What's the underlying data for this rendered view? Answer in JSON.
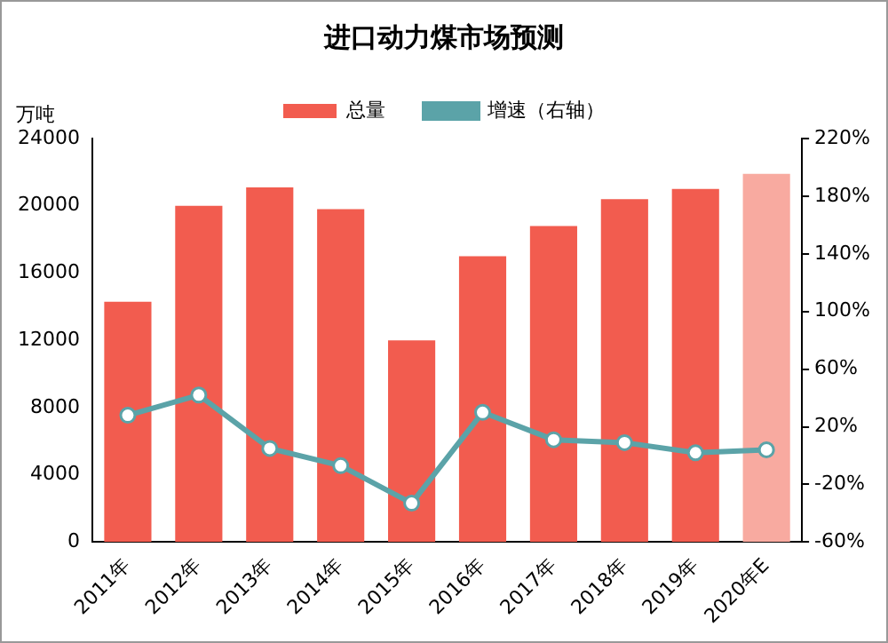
{
  "chart_data": {
    "type": "bar",
    "title": "进口动力煤市场预测",
    "ylabel": "万吨",
    "categories": [
      "2011年",
      "2012年",
      "2013年",
      "2014年",
      "2015年",
      "2016年",
      "2017年",
      "2018年",
      "2019年",
      "2020年E"
    ],
    "series": [
      {
        "name": "总量",
        "color": "#f25c4f",
        "colors": [
          "#f25c4f",
          "#f25c4f",
          "#f25c4f",
          "#f25c4f",
          "#f25c4f",
          "#f25c4f",
          "#f25c4f",
          "#f25c4f",
          "#f25c4f",
          "#f8aaa0"
        ],
        "values": [
          14300,
          20000,
          21100,
          19800,
          12000,
          17000,
          18800,
          20400,
          21000,
          21900
        ]
      },
      {
        "name": "增速（右轴）",
        "type": "line",
        "axis": "y2",
        "color": "#5ba3a8",
        "values": [
          28,
          42,
          5,
          -7,
          -33,
          30,
          11,
          9,
          2,
          4
        ]
      }
    ],
    "ylim": [
      0,
      24000
    ],
    "yticks": [
      0,
      4000,
      8000,
      12000,
      16000,
      20000,
      24000
    ],
    "y2lim": [
      -60,
      220
    ],
    "y2ticks": [
      {
        "value": -60,
        "label": "-60%"
      },
      {
        "value": -20,
        "label": "-20%"
      },
      {
        "value": 20,
        "label": "20%"
      },
      {
        "value": 60,
        "label": "60%"
      },
      {
        "value": 100,
        "label": "100%"
      },
      {
        "value": 140,
        "label": "140%"
      },
      {
        "value": 180,
        "label": "180%"
      },
      {
        "value": 220,
        "label": "220%"
      }
    ],
    "grid": false,
    "legend": "top",
    "marker": "circle",
    "line_style": "solid"
  }
}
